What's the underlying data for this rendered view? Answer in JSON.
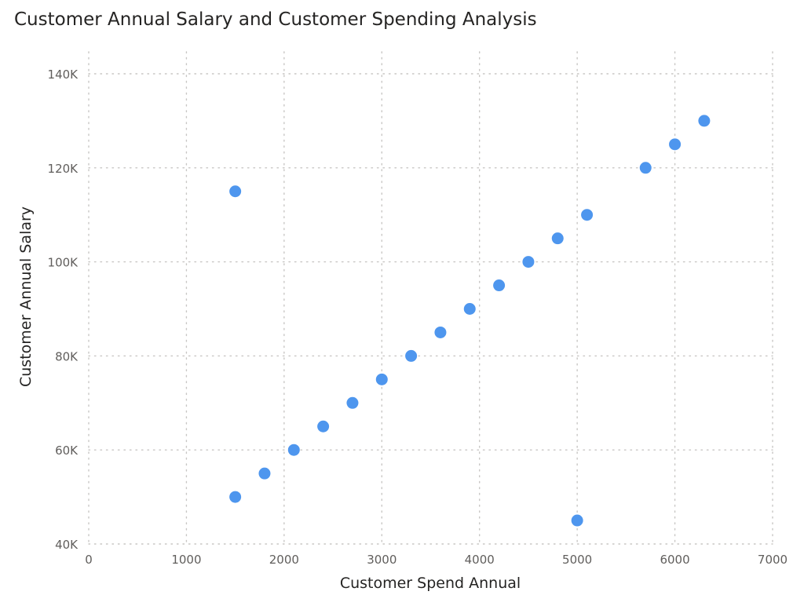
{
  "chart_data": {
    "type": "scatter",
    "title": "Customer Annual Salary and Customer Spending Analysis",
    "xlabel": "Customer Spend Annual",
    "ylabel": "Customer Annual Salary",
    "xlim": [
      0,
      7000
    ],
    "ylim": [
      40000,
      140000
    ],
    "x_ticks": [
      0,
      1000,
      2000,
      3000,
      4000,
      5000,
      6000,
      7000
    ],
    "x_tick_labels": [
      "0",
      "1000",
      "2000",
      "3000",
      "4000",
      "5000",
      "6000",
      "7000"
    ],
    "y_ticks": [
      40000,
      60000,
      80000,
      100000,
      120000,
      140000
    ],
    "y_tick_labels": [
      "40K",
      "60K",
      "80K",
      "100K",
      "120K",
      "140K"
    ],
    "grid": true,
    "point_color": "#4e96ee",
    "points": [
      {
        "x": 1500,
        "y": 50000
      },
      {
        "x": 1800,
        "y": 55000
      },
      {
        "x": 2100,
        "y": 60000
      },
      {
        "x": 2400,
        "y": 65000
      },
      {
        "x": 2700,
        "y": 70000
      },
      {
        "x": 3000,
        "y": 75000
      },
      {
        "x": 3300,
        "y": 80000
      },
      {
        "x": 3600,
        "y": 85000
      },
      {
        "x": 3900,
        "y": 90000
      },
      {
        "x": 4200,
        "y": 95000
      },
      {
        "x": 4500,
        "y": 100000
      },
      {
        "x": 4800,
        "y": 105000
      },
      {
        "x": 5100,
        "y": 110000
      },
      {
        "x": 5700,
        "y": 120000
      },
      {
        "x": 6000,
        "y": 125000
      },
      {
        "x": 6300,
        "y": 130000
      },
      {
        "x": 1500,
        "y": 115000
      },
      {
        "x": 5000,
        "y": 45000
      }
    ]
  }
}
